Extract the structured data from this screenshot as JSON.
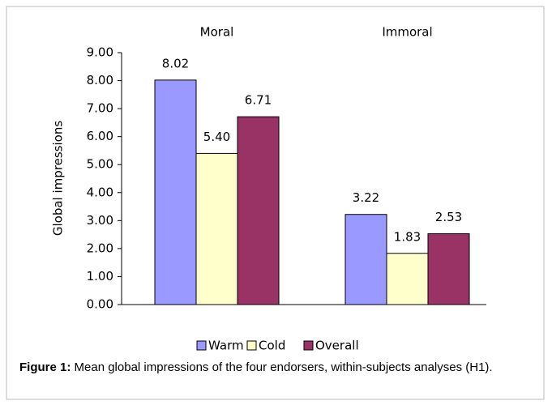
{
  "chart_data": {
    "type": "bar",
    "categories": [
      "Moral",
      "Immoral"
    ],
    "series": [
      {
        "name": "Warm",
        "color": "#9999ff",
        "values": [
          8.02,
          3.22
        ],
        "value_labels": [
          "8.02",
          "3.22"
        ]
      },
      {
        "name": "Cold",
        "color": "#ffffcc",
        "values": [
          5.4,
          1.83
        ],
        "value_labels": [
          "5.40",
          "1.83"
        ]
      },
      {
        "name": "Overall",
        "color": "#993366",
        "values": [
          6.71,
          2.53
        ],
        "value_labels": [
          "6.71",
          "2.53"
        ]
      }
    ],
    "y_label": "Global impressions",
    "ylim": [
      0,
      9
    ],
    "yticks": [
      {
        "value": 0,
        "label": "0.00"
      },
      {
        "value": 1,
        "label": "1.00"
      },
      {
        "value": 2,
        "label": "2.00"
      },
      {
        "value": 3,
        "label": "3.00"
      },
      {
        "value": 4,
        "label": "4.00"
      },
      {
        "value": 5,
        "label": "5.00"
      },
      {
        "value": 6,
        "label": "6.00"
      },
      {
        "value": 7,
        "label": "7.00"
      },
      {
        "value": 8,
        "label": "8.00"
      },
      {
        "value": 9,
        "label": "9.00"
      }
    ],
    "grid": false,
    "legend": "bottom"
  },
  "caption": {
    "label": "Figure 1:",
    "text": "Mean global impressions of the four endorsers, within-subjects analyses (H1)."
  }
}
